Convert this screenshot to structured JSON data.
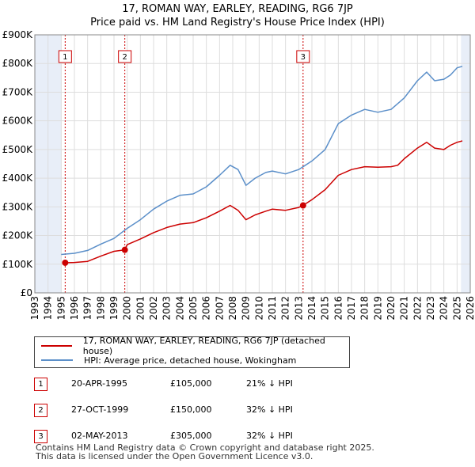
{
  "title": "17, ROMAN WAY, EARLEY, READING, RG6 7JP",
  "subtitle": "Price paid vs. HM Land Registry's House Price Index (HPI)",
  "colors": {
    "property": "#cc0000",
    "hpi": "#5b8fc9",
    "shade": "#e8eef8",
    "grid": "#dddddd",
    "marker": "#cc0000"
  },
  "chart_data": {
    "type": "line",
    "xlim": [
      1993,
      2026
    ],
    "ylim": [
      0,
      900000
    ],
    "x_ticks": [
      "1993",
      "1994",
      "1995",
      "1996",
      "1997",
      "1998",
      "1999",
      "2000",
      "2001",
      "2002",
      "2003",
      "2004",
      "2005",
      "2006",
      "2007",
      "2008",
      "2009",
      "2010",
      "2011",
      "2012",
      "2013",
      "2014",
      "2015",
      "2016",
      "2017",
      "2018",
      "2019",
      "2020",
      "2021",
      "2022",
      "2023",
      "2024",
      "2025",
      "2026"
    ],
    "y_ticks": [
      {
        "value": 0,
        "label": "£0"
      },
      {
        "value": 100000,
        "label": "£100K"
      },
      {
        "value": 200000,
        "label": "£200K"
      },
      {
        "value": 300000,
        "label": "£300K"
      },
      {
        "value": 400000,
        "label": "£400K"
      },
      {
        "value": 500000,
        "label": "£500K"
      },
      {
        "value": 600000,
        "label": "£600K"
      },
      {
        "value": 700000,
        "label": "£700K"
      },
      {
        "value": 800000,
        "label": "£800K"
      },
      {
        "value": 900000,
        "label": "£900K"
      }
    ],
    "series": [
      {
        "name": "17, ROMAN WAY, EARLEY, READING, RG6 7JP (detached house)",
        "color": "#cc0000",
        "points": [
          [
            1995.3,
            105000
          ],
          [
            1996.0,
            106000
          ],
          [
            1997.0,
            110000
          ],
          [
            1998.0,
            128000
          ],
          [
            1999.0,
            145000
          ],
          [
            1999.8,
            150000
          ],
          [
            2000.0,
            168000
          ],
          [
            2001.0,
            188000
          ],
          [
            2002.0,
            210000
          ],
          [
            2003.0,
            228000
          ],
          [
            2004.0,
            240000
          ],
          [
            2005.0,
            245000
          ],
          [
            2006.0,
            262000
          ],
          [
            2007.0,
            285000
          ],
          [
            2007.8,
            305000
          ],
          [
            2008.4,
            288000
          ],
          [
            2009.0,
            255000
          ],
          [
            2009.7,
            272000
          ],
          [
            2010.5,
            285000
          ],
          [
            2011.0,
            292000
          ],
          [
            2012.0,
            288000
          ],
          [
            2013.0,
            298000
          ],
          [
            2013.33,
            305000
          ],
          [
            2014.0,
            325000
          ],
          [
            2015.0,
            360000
          ],
          [
            2016.0,
            410000
          ],
          [
            2017.0,
            430000
          ],
          [
            2018.0,
            440000
          ],
          [
            2019.0,
            438000
          ],
          [
            2020.0,
            440000
          ],
          [
            2020.5,
            445000
          ],
          [
            2021.0,
            468000
          ],
          [
            2022.0,
            505000
          ],
          [
            2022.7,
            525000
          ],
          [
            2023.3,
            505000
          ],
          [
            2024.0,
            500000
          ],
          [
            2024.5,
            515000
          ],
          [
            2025.0,
            525000
          ],
          [
            2025.4,
            530000
          ]
        ]
      },
      {
        "name": "HPI: Average price, detached house, Wokingham",
        "color": "#5b8fc9",
        "points": [
          [
            1995.0,
            134000
          ],
          [
            1996.0,
            138000
          ],
          [
            1997.0,
            148000
          ],
          [
            1998.0,
            170000
          ],
          [
            1999.0,
            190000
          ],
          [
            2000.0,
            225000
          ],
          [
            2001.0,
            255000
          ],
          [
            2002.0,
            292000
          ],
          [
            2003.0,
            320000
          ],
          [
            2004.0,
            340000
          ],
          [
            2005.0,
            345000
          ],
          [
            2006.0,
            370000
          ],
          [
            2007.0,
            410000
          ],
          [
            2007.8,
            445000
          ],
          [
            2008.4,
            430000
          ],
          [
            2009.0,
            375000
          ],
          [
            2009.7,
            400000
          ],
          [
            2010.5,
            420000
          ],
          [
            2011.0,
            425000
          ],
          [
            2012.0,
            415000
          ],
          [
            2013.0,
            430000
          ],
          [
            2014.0,
            460000
          ],
          [
            2015.0,
            500000
          ],
          [
            2016.0,
            590000
          ],
          [
            2017.0,
            620000
          ],
          [
            2018.0,
            640000
          ],
          [
            2019.0,
            630000
          ],
          [
            2020.0,
            640000
          ],
          [
            2021.0,
            680000
          ],
          [
            2022.0,
            740000
          ],
          [
            2022.7,
            770000
          ],
          [
            2023.3,
            740000
          ],
          [
            2024.0,
            745000
          ],
          [
            2024.5,
            760000
          ],
          [
            2025.0,
            785000
          ],
          [
            2025.4,
            790000
          ]
        ]
      }
    ],
    "sales": [
      {
        "n": "1",
        "year": 1995.3,
        "price": 105000
      },
      {
        "n": "2",
        "year": 1999.82,
        "price": 150000
      },
      {
        "n": "3",
        "year": 2013.33,
        "price": 305000
      }
    ],
    "shaded_ranges": [
      [
        1993,
        1995.0
      ],
      [
        2025.3,
        2026
      ]
    ]
  },
  "legend": {
    "property_label": "17, ROMAN WAY, EARLEY, READING, RG6 7JP (detached house)",
    "hpi_label": "HPI: Average price, detached house, Wokingham"
  },
  "table": [
    {
      "n": "1",
      "date": "20-APR-1995",
      "price": "£105,000",
      "hpi": "21% ↓ HPI"
    },
    {
      "n": "2",
      "date": "27-OCT-1999",
      "price": "£150,000",
      "hpi": "32% ↓ HPI"
    },
    {
      "n": "3",
      "date": "02-MAY-2013",
      "price": "£305,000",
      "hpi": "32% ↓ HPI"
    }
  ],
  "footer": {
    "line1": "Contains HM Land Registry data © Crown copyright and database right 2025.",
    "line2": "This data is licensed under the Open Government Licence v3.0."
  }
}
